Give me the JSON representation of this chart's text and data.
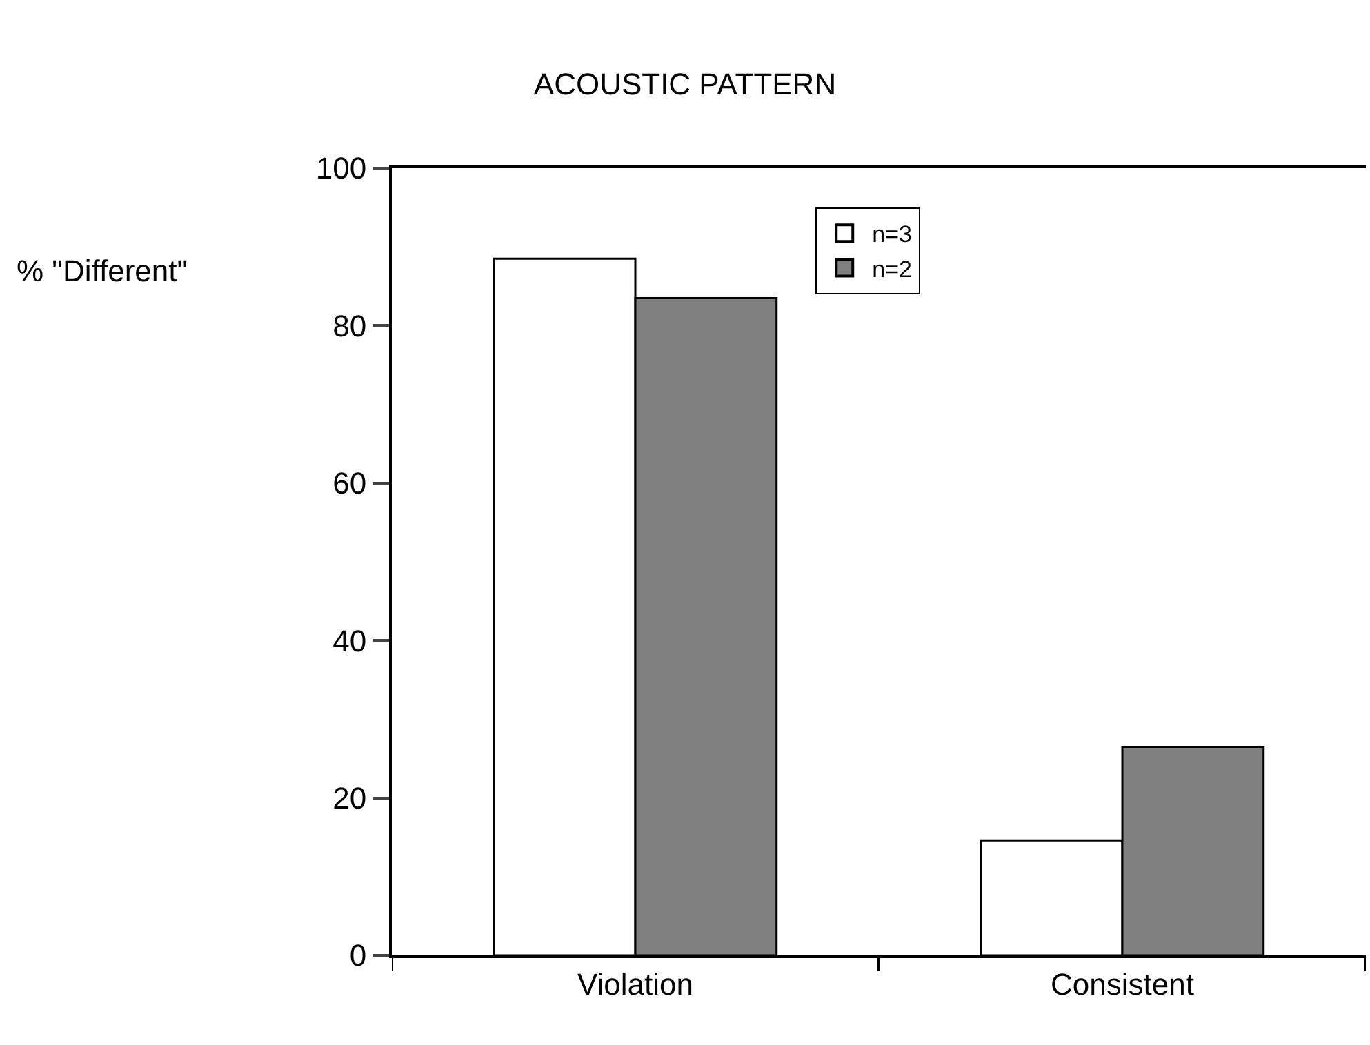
{
  "chart_data": {
    "type": "bar",
    "title": "ACOUSTIC PATTERN",
    "annotations": [
      "% \"Different\""
    ],
    "categories": [
      "Violation",
      "Consistent"
    ],
    "series": [
      {
        "name": "n=3",
        "color": "#ffffff",
        "values": [
          88.5,
          14.6
        ]
      },
      {
        "name": "n=2",
        "color": "#808080",
        "values": [
          83.5,
          26.5
        ]
      }
    ],
    "ylim": [
      0,
      100
    ],
    "yticks": [
      0,
      20,
      40,
      60,
      80,
      100
    ],
    "legend": "top"
  }
}
